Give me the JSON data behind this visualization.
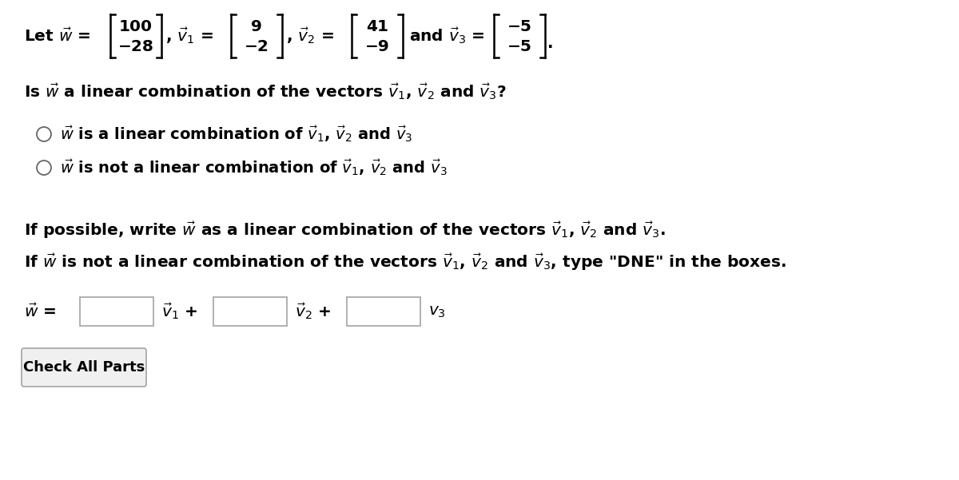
{
  "bg_color": "#ffffff",
  "text_color": "#000000",
  "w_top": "100",
  "w_bot": "−28",
  "v1_top": "9",
  "v1_bot": "−2",
  "v2_top": "41",
  "v2_bot": "−9",
  "v3_top": "−5",
  "v3_bot": "−5",
  "line2": "Is $\\vec{w}$ a linear combination of the vectors $\\vec{v}_1$, $\\vec{v}_2$ and $\\vec{v}_3$?",
  "radio1": "$\\vec{w}$ is a linear combination of $\\vec{v}_1$, $\\vec{v}_2$ and $\\vec{v}_3$",
  "radio2": "$\\vec{w}$ is not a linear combination of $\\vec{v}_1$, $\\vec{v}_2$ and $\\vec{v}_3$",
  "line3": "If possible, write $\\vec{w}$ as a linear combination of the vectors $\\vec{v}_1$, $\\vec{v}_2$ and $\\vec{v}_3$.",
  "line4": "If $\\vec{w}$ is not a linear combination of the vectors $\\vec{v}_1$, $\\vec{v}_2$ and $\\vec{v}_3$, type \"DNE\" in the boxes.",
  "button_text": "Check All Parts",
  "fontsize_main": 14.5,
  "fontsize_matrix": 14.5,
  "radio_fontsize": 14.0
}
